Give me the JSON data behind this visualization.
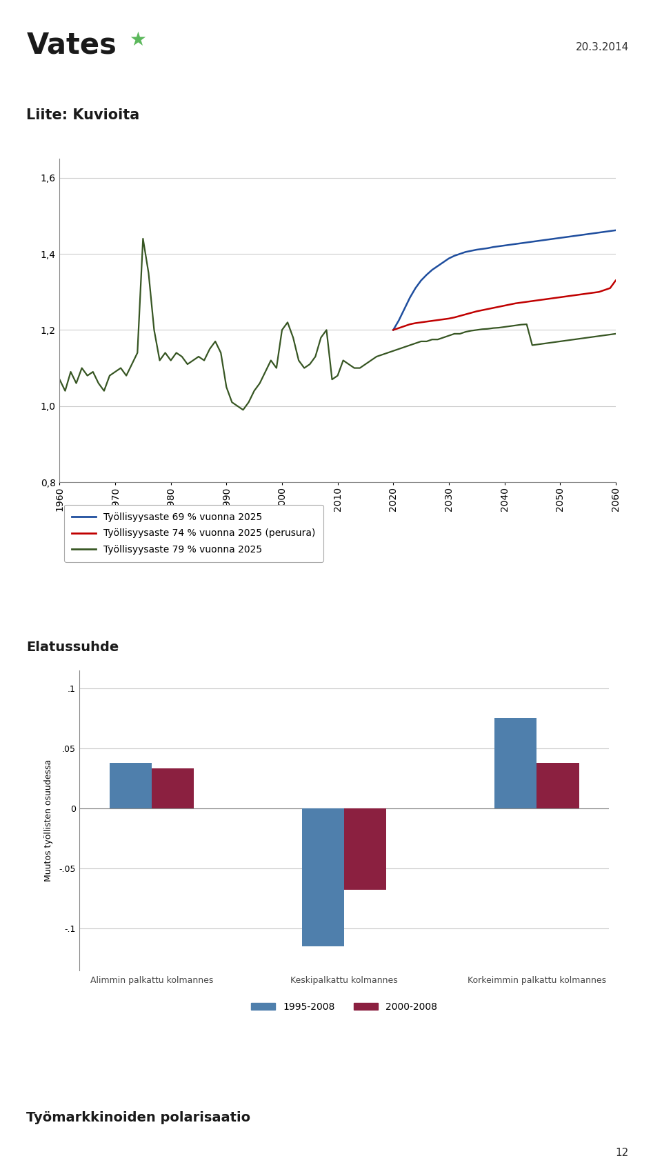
{
  "date_text": "20.3.2014",
  "header_title": "Liite: Kuvioita",
  "footer_label": "Työmarkkinoiden polarisaatio",
  "page_number": "12",
  "line_chart": {
    "years": [
      1960,
      1961,
      1962,
      1963,
      1964,
      1965,
      1966,
      1967,
      1968,
      1969,
      1970,
      1971,
      1972,
      1973,
      1974,
      1975,
      1976,
      1977,
      1978,
      1979,
      1980,
      1981,
      1982,
      1983,
      1984,
      1985,
      1986,
      1987,
      1988,
      1989,
      1990,
      1991,
      1992,
      1993,
      1994,
      1995,
      1996,
      1997,
      1998,
      1999,
      2000,
      2001,
      2002,
      2003,
      2004,
      2005,
      2006,
      2007,
      2008,
      2009,
      2010,
      2011,
      2012,
      2013,
      2014,
      2015,
      2016,
      2017,
      2018,
      2019,
      2020,
      2021,
      2022,
      2023,
      2024,
      2025,
      2026,
      2027,
      2028,
      2029,
      2030,
      2031,
      2032,
      2033,
      2034,
      2035,
      2036,
      2037,
      2038,
      2039,
      2040,
      2041,
      2042,
      2043,
      2044,
      2045,
      2046,
      2047,
      2048,
      2049,
      2050,
      2051,
      2052,
      2053,
      2054,
      2055,
      2056,
      2057,
      2058,
      2059,
      2060
    ],
    "blue_69": [
      null,
      null,
      null,
      null,
      null,
      null,
      null,
      null,
      null,
      null,
      null,
      null,
      null,
      null,
      null,
      null,
      null,
      null,
      null,
      null,
      null,
      null,
      null,
      null,
      null,
      null,
      null,
      null,
      null,
      null,
      null,
      null,
      null,
      null,
      null,
      null,
      null,
      null,
      null,
      null,
      null,
      null,
      null,
      null,
      null,
      null,
      null,
      null,
      null,
      null,
      null,
      null,
      null,
      null,
      null,
      null,
      null,
      null,
      null,
      null,
      1.2,
      1.225,
      1.255,
      1.285,
      1.31,
      1.33,
      1.345,
      1.358,
      1.368,
      1.378,
      1.388,
      1.395,
      1.4,
      1.405,
      1.408,
      1.411,
      1.413,
      1.415,
      1.418,
      1.42,
      1.422,
      1.424,
      1.426,
      1.428,
      1.43,
      1.432,
      1.434,
      1.436,
      1.438,
      1.44,
      1.442,
      1.444,
      1.446,
      1.448,
      1.45,
      1.452,
      1.454,
      1.456,
      1.458,
      1.46,
      1.462
    ],
    "red_74": [
      null,
      null,
      null,
      null,
      null,
      null,
      null,
      null,
      null,
      null,
      null,
      null,
      null,
      null,
      null,
      null,
      null,
      null,
      null,
      null,
      null,
      null,
      null,
      null,
      null,
      null,
      null,
      null,
      null,
      null,
      null,
      null,
      null,
      null,
      null,
      null,
      null,
      null,
      null,
      null,
      null,
      null,
      null,
      null,
      null,
      null,
      null,
      null,
      null,
      null,
      null,
      null,
      null,
      null,
      null,
      null,
      null,
      null,
      null,
      null,
      1.2,
      1.205,
      1.21,
      1.215,
      1.218,
      1.22,
      1.222,
      1.224,
      1.226,
      1.228,
      1.23,
      1.233,
      1.237,
      1.241,
      1.245,
      1.249,
      1.252,
      1.255,
      1.258,
      1.261,
      1.264,
      1.267,
      1.27,
      1.272,
      1.274,
      1.276,
      1.278,
      1.28,
      1.282,
      1.284,
      1.286,
      1.288,
      1.29,
      1.292,
      1.294,
      1.296,
      1.298,
      1.3,
      1.305,
      1.31,
      1.33
    ],
    "green_79": [
      1.07,
      1.04,
      1.09,
      1.06,
      1.1,
      1.08,
      1.09,
      1.06,
      1.04,
      1.08,
      1.09,
      1.1,
      1.08,
      1.11,
      1.14,
      1.44,
      1.35,
      1.2,
      1.12,
      1.14,
      1.12,
      1.14,
      1.13,
      1.11,
      1.12,
      1.13,
      1.12,
      1.15,
      1.17,
      1.14,
      1.05,
      1.01,
      1.0,
      0.99,
      1.01,
      1.04,
      1.06,
      1.09,
      1.12,
      1.1,
      1.2,
      1.22,
      1.18,
      1.12,
      1.1,
      1.11,
      1.13,
      1.18,
      1.2,
      1.07,
      1.08,
      1.12,
      1.11,
      1.1,
      1.1,
      1.11,
      1.12,
      1.13,
      1.135,
      1.14,
      1.145,
      1.15,
      1.155,
      1.16,
      1.165,
      1.17,
      1.17,
      1.175,
      1.175,
      1.18,
      1.185,
      1.19,
      1.19,
      1.195,
      1.198,
      1.2,
      1.202,
      1.203,
      1.205,
      1.206,
      1.208,
      1.21,
      1.212,
      1.214,
      1.215,
      1.16,
      1.162,
      1.164,
      1.166,
      1.168,
      1.17,
      1.172,
      1.174,
      1.176,
      1.178,
      1.18,
      1.182,
      1.184,
      1.186,
      1.188,
      1.19
    ],
    "yticks": [
      0.8,
      1.0,
      1.2,
      1.4,
      1.6
    ],
    "xticks": [
      1960,
      1970,
      1980,
      1990,
      2000,
      2010,
      2020,
      2030,
      2040,
      2050,
      2060
    ],
    "ylim": [
      0.8,
      1.65
    ],
    "legend_labels": [
      "Työllisyysaste 69 % vuonna 2025",
      "Työllisyysaste 74 % vuonna 2025 (perusura)",
      "Työllisyysaste 79 % vuonna 2025"
    ],
    "legend_colors": [
      "#1f4e9e",
      "#c00000",
      "#375623"
    ]
  },
  "bar_chart": {
    "groups": [
      "Alimmin palkattu kolmannes",
      "Keskipalkattu kolmannes",
      "Korkeimmin palkattu kolmannes"
    ],
    "blue_values": [
      0.038,
      -0.115,
      0.075
    ],
    "red_values": [
      0.033,
      -0.068,
      0.038
    ],
    "blue_color": "#4f7fac",
    "red_color": "#8b2040",
    "yticks": [
      -0.1,
      -0.05,
      0,
      0.05,
      0.1
    ],
    "ylim": [
      -0.135,
      0.115
    ],
    "ylabel": "Muutos työllisten osuudessa",
    "legend_labels": [
      "1995-2008",
      "2000-2008"
    ],
    "elatussuhde_title": "Elatussuhde"
  },
  "logo_text": "Vates",
  "bg_color": "#ffffff"
}
